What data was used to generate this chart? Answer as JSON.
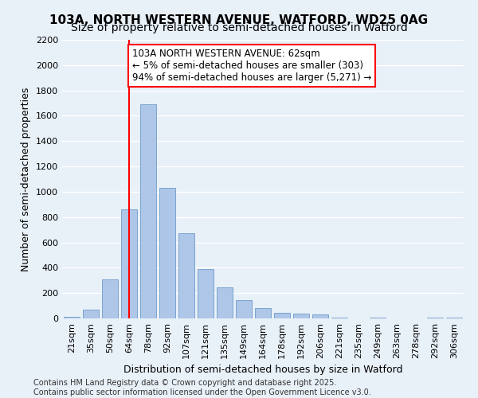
{
  "title": "103A, NORTH WESTERN AVENUE, WATFORD, WD25 0AG",
  "subtitle": "Size of property relative to semi-detached houses in Watford",
  "xlabel": "Distribution of semi-detached houses by size in Watford",
  "ylabel": "Number of semi-detached properties",
  "bin_labels": [
    "21sqm",
    "35sqm",
    "50sqm",
    "64sqm",
    "78sqm",
    "92sqm",
    "107sqm",
    "121sqm",
    "135sqm",
    "149sqm",
    "164sqm",
    "178sqm",
    "192sqm",
    "206sqm",
    "221sqm",
    "235sqm",
    "249sqm",
    "263sqm",
    "278sqm",
    "292sqm",
    "306sqm"
  ],
  "bin_values": [
    15,
    70,
    310,
    860,
    1690,
    1030,
    670,
    390,
    245,
    145,
    80,
    45,
    35,
    30,
    5,
    0,
    5,
    0,
    0,
    5,
    5
  ],
  "bar_color": "#aec6e8",
  "bar_edge_color": "#5a8fc2",
  "property_line_x": 3.0,
  "property_line_color": "red",
  "annotation_text": "103A NORTH WESTERN AVENUE: 62sqm\n← 5% of semi-detached houses are smaller (303)\n94% of semi-detached houses are larger (5,271) →",
  "annotation_box_color": "white",
  "annotation_box_edge_color": "red",
  "ylim": [
    0,
    2200
  ],
  "yticks": [
    0,
    200,
    400,
    600,
    800,
    1000,
    1200,
    1400,
    1600,
    1800,
    2000,
    2200
  ],
  "background_color": "#e8f0f8",
  "grid_color": "white",
  "footer_text": "Contains HM Land Registry data © Crown copyright and database right 2025.\nContains public sector information licensed under the Open Government Licence v3.0.",
  "title_fontsize": 11,
  "subtitle_fontsize": 10,
  "axis_label_fontsize": 9,
  "tick_fontsize": 8,
  "annotation_fontsize": 8.5,
  "footer_fontsize": 7
}
